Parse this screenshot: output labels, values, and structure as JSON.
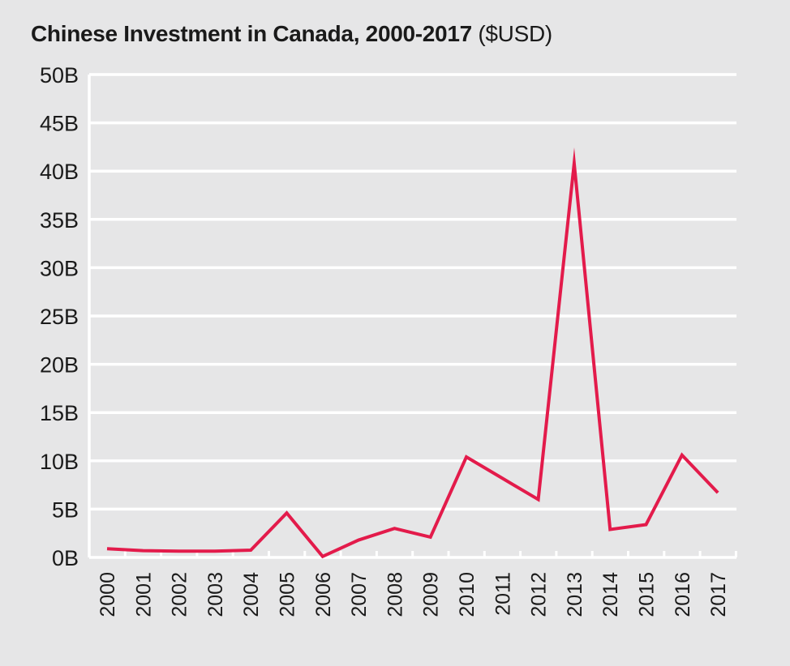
{
  "chart_data": {
    "type": "line",
    "title": "Chinese Investment in Canada, 2000-2017",
    "title_unit": "($USD)",
    "xlabel": "",
    "ylabel": "",
    "categories": [
      "2000",
      "2001",
      "2002",
      "2003",
      "2004",
      "2005",
      "2006",
      "2007",
      "2008",
      "2009",
      "2010",
      "2011",
      "2012",
      "2013",
      "2014",
      "2015",
      "2016",
      "2017"
    ],
    "series": [
      {
        "values": [
          0.9,
          0.7,
          0.65,
          0.65,
          0.75,
          4.6,
          0.1,
          1.8,
          3.0,
          2.1,
          10.4,
          8.2,
          6.0,
          40.8,
          2.9,
          3.4,
          10.6,
          6.7
        ],
        "color": "#e31b4b"
      }
    ],
    "ylim": [
      0,
      50
    ],
    "yticks": [
      0,
      5,
      10,
      15,
      20,
      25,
      30,
      35,
      40,
      45,
      50
    ],
    "ytick_labels": [
      "0B",
      "5B",
      "10B",
      "15B",
      "20B",
      "25B",
      "30B",
      "35B",
      "40B",
      "45B",
      "50B"
    ],
    "grid": true,
    "colors": {
      "background": "#e6e6e7",
      "grid": "#ffffff",
      "line": "#e31b4b",
      "text": "#1a1a1a"
    }
  }
}
